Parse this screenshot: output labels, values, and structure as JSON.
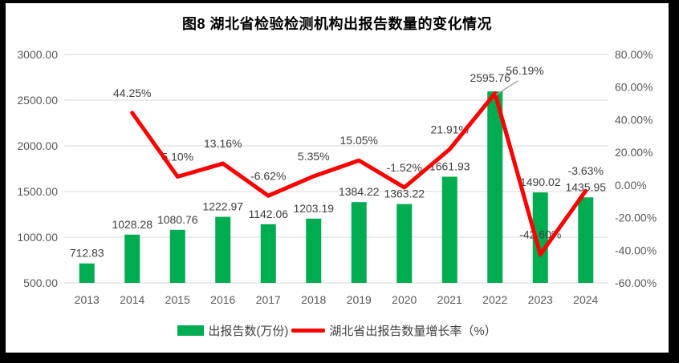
{
  "title": "图8  湖北省检验检测机构出报告数量的变化情况",
  "legend": [
    {
      "label": "出报告数(万份)",
      "type": "bar",
      "color": "#00AC50"
    },
    {
      "label": "湖北省出报告数量增长率（%）",
      "type": "line",
      "color": "#FF0000"
    }
  ],
  "colors": {
    "bar": "#00AC50",
    "line": "#FF0000",
    "grid": "#D9D9D9",
    "axis_text": "#595959",
    "label_text": "#3F3F3F",
    "leader": "#A6A6A6",
    "frame": "#000000",
    "background": "#FFFFFF"
  },
  "chart_data": {
    "type": "bar",
    "subtype": "combo-bar-line",
    "title": "图8  湖北省检验检测机构出报告数量的变化情况",
    "categories": [
      "2013",
      "2014",
      "2015",
      "2016",
      "2017",
      "2018",
      "2019",
      "2020",
      "2021",
      "2022",
      "2023",
      "2024"
    ],
    "series": [
      {
        "name": "出报告数(万份)",
        "type": "bar",
        "axis": "left",
        "color": "#00AC50",
        "values": [
          712.83,
          1028.28,
          1080.76,
          1222.97,
          1142.06,
          1203.19,
          1384.22,
          1363.22,
          1661.93,
          2595.76,
          1490.02,
          1435.95
        ],
        "labels": [
          "712.83",
          "1028.28",
          "1080.76",
          "1222.97",
          "1142.06",
          "1203.19",
          "1384.22",
          "1363.22",
          "1661.93",
          "2595.76",
          "1490.02",
          "1435.95"
        ]
      },
      {
        "name": "湖北省出报告数量增长率（%）",
        "type": "line",
        "axis": "right",
        "color": "#FF0000",
        "values": [
          null,
          44.25,
          5.1,
          13.16,
          -6.62,
          5.35,
          15.05,
          -1.52,
          21.91,
          56.19,
          -42.6,
          -3.63
        ],
        "labels": [
          null,
          "44.25%",
          "5.10%",
          "13.16%",
          "-6.62%",
          "5.35%",
          "15.05%",
          "-1.52%",
          "21.91%",
          "56.19%",
          "-42.60%",
          "-3.63%"
        ]
      }
    ],
    "left_axis": {
      "min": 500,
      "max": 3000,
      "step": 500,
      "ticks": [
        "3000.00",
        "2500.00",
        "2000.00",
        "1500.00",
        "1000.00",
        "500.00"
      ],
      "tick_values": [
        3000,
        2500,
        2000,
        1500,
        1000,
        500
      ]
    },
    "right_axis": {
      "min": -60,
      "max": 80,
      "step": 20,
      "ticks": [
        "80.00%",
        "60.00%",
        "40.00%",
        "20.00%",
        "0.00%",
        "-20.00%",
        "-40.00%",
        "-60.00%"
      ],
      "tick_values": [
        80,
        60,
        40,
        20,
        0,
        -20,
        -40,
        -60
      ]
    },
    "grid": true,
    "legend_position": "bottom",
    "callout": {
      "index": 9,
      "label": "56.19%"
    }
  }
}
